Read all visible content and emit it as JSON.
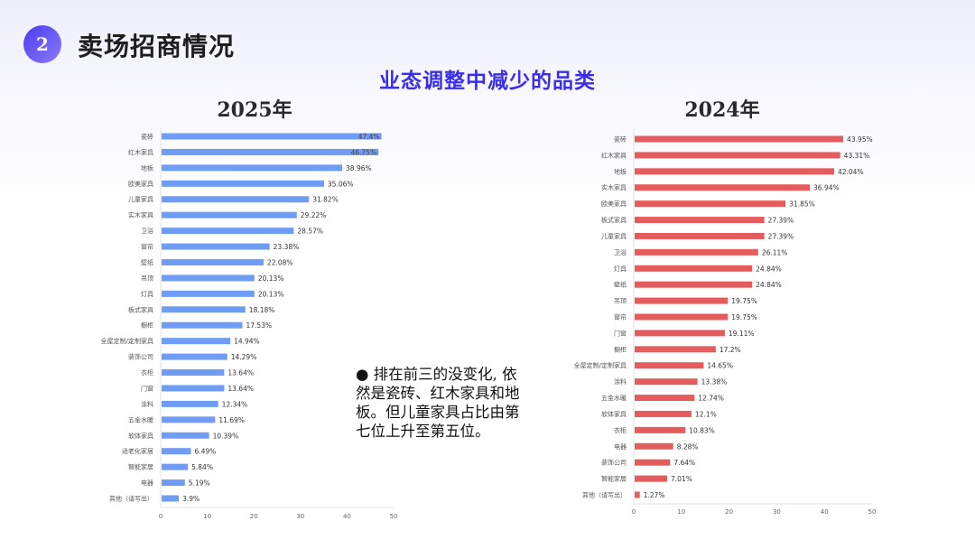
{
  "header": {
    "section_number": "2",
    "title": "卖场招商情况"
  },
  "subtitle": "业态调整中减少的品类",
  "note": "● 排在前三的没变化, 依然是瓷砖、红木家具和地板。但儿童家具占比由第七位上升至第五位。",
  "chart_data": [
    {
      "type": "bar",
      "orientation": "horizontal",
      "title": "2025年",
      "color": "#6f9cf5",
      "xlim": [
        0,
        50
      ],
      "xticks": [
        "0",
        "10",
        "20",
        "30",
        "40",
        "50"
      ],
      "categories": [
        "瓷砖",
        "红木家具",
        "地板",
        "欧美家具",
        "儿童家具",
        "实木家具",
        "卫浴",
        "窗帘",
        "壁纸",
        "吊顶",
        "灯具",
        "板式家具",
        "橱柜",
        "全屋定制/定制家具",
        "装饰公司",
        "衣柜",
        "门窗",
        "涂料",
        "五金水暖",
        "软体家具",
        "适老化家居",
        "智能家居",
        "电器",
        "其他（请写出）"
      ],
      "values": [
        47.4,
        46.75,
        38.96,
        35.06,
        31.82,
        29.22,
        28.57,
        23.38,
        22.08,
        20.13,
        20.13,
        18.18,
        17.53,
        14.94,
        14.29,
        13.64,
        13.64,
        12.34,
        11.69,
        10.39,
        6.49,
        5.84,
        5.19,
        3.9
      ],
      "labels": [
        "47.4%",
        "46.75%",
        "38.96%",
        "35.06%",
        "31.82%",
        "29.22%",
        "28.57%",
        "23.38%",
        "22.08%",
        "20.13%",
        "20.13%",
        "18.18%",
        "17.53%",
        "14.94%",
        "14.29%",
        "13.64%",
        "13.64%",
        "12.34%",
        "11.69%",
        "10.39%",
        "6.49%",
        "5.84%",
        "5.19%",
        "3.9%"
      ]
    },
    {
      "type": "bar",
      "orientation": "horizontal",
      "title": "2024年",
      "color": "#e45c5c",
      "xlim": [
        0,
        50
      ],
      "xticks": [
        "0",
        "10",
        "20",
        "30",
        "40",
        "50"
      ],
      "categories": [
        "瓷砖",
        "红木家具",
        "地板",
        "实木家具",
        "欧美家具",
        "板式家具",
        "儿童家具",
        "卫浴",
        "灯具",
        "壁纸",
        "吊顶",
        "窗帘",
        "门窗",
        "橱柜",
        "全屋定制/定制家具",
        "涂料",
        "五金水暖",
        "软体家具",
        "衣柜",
        "电器",
        "装饰公司",
        "智能家居",
        "其他（请写出）"
      ],
      "values": [
        43.95,
        43.31,
        42.04,
        36.94,
        31.85,
        27.39,
        27.39,
        26.11,
        24.84,
        24.84,
        19.75,
        19.75,
        19.11,
        17.2,
        14.65,
        13.38,
        12.74,
        12.1,
        10.83,
        8.28,
        7.64,
        7.01,
        1.27
      ],
      "labels": [
        "43.95%",
        "43.31%",
        "42.04%",
        "36.94%",
        "31.85%",
        "27.39%",
        "27.39%",
        "26.11%",
        "24.84%",
        "24.84%",
        "19.75%",
        "19.75%",
        "19.11%",
        "17.2%",
        "14.65%",
        "13.38%",
        "12.74%",
        "12.1%",
        "10.83%",
        "8.28%",
        "7.64%",
        "7.01%",
        "1.27%"
      ]
    }
  ]
}
